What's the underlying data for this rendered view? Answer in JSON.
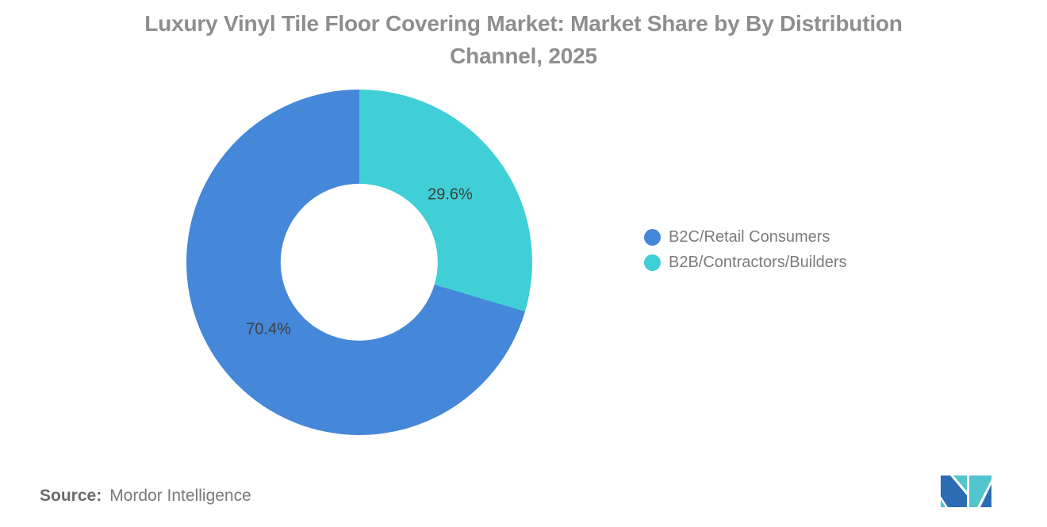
{
  "title": {
    "line1": "Luxury Vinyl Tile Floor Covering Market: Market Share by By Distribution",
    "line2": "Channel, 2025"
  },
  "chart_data": {
    "type": "pie",
    "subtype": "donut",
    "title": "Luxury Vinyl Tile Floor Covering Market: Market Share by By Distribution Channel, 2025",
    "categories": [
      "B2C/Retail Consumers",
      "B2B/Contractors/Builders"
    ],
    "values": [
      70.4,
      29.6
    ],
    "unit": "%",
    "start_angle_deg": 0,
    "direction": "clockwise",
    "inner_radius_ratio": 0.455,
    "data_label_color": "#3f3f3f",
    "legend_position": "right",
    "grid": false,
    "slices_clockwise_from_top": [
      {
        "label": "B2B/Contractors/Builders",
        "value": 29.6,
        "color": "#40cfd6",
        "data_label": "29.6%"
      },
      {
        "label": "B2C/Retail Consumers",
        "value": 70.4,
        "color": "#4587d8",
        "data_label": "70.4%"
      }
    ]
  },
  "legend": {
    "items": [
      {
        "label": "B2C/Retail Consumers",
        "color": "#4587d8"
      },
      {
        "label": "B2B/Contractors/Builders",
        "color": "#40cfd6"
      }
    ]
  },
  "footer": {
    "source_label": "Source:",
    "source_value": "Mordor Intelligence"
  },
  "logo": {
    "name": "mordor-intelligence-logo",
    "blue": "#2b6cb3",
    "teal": "#52c5ce"
  }
}
